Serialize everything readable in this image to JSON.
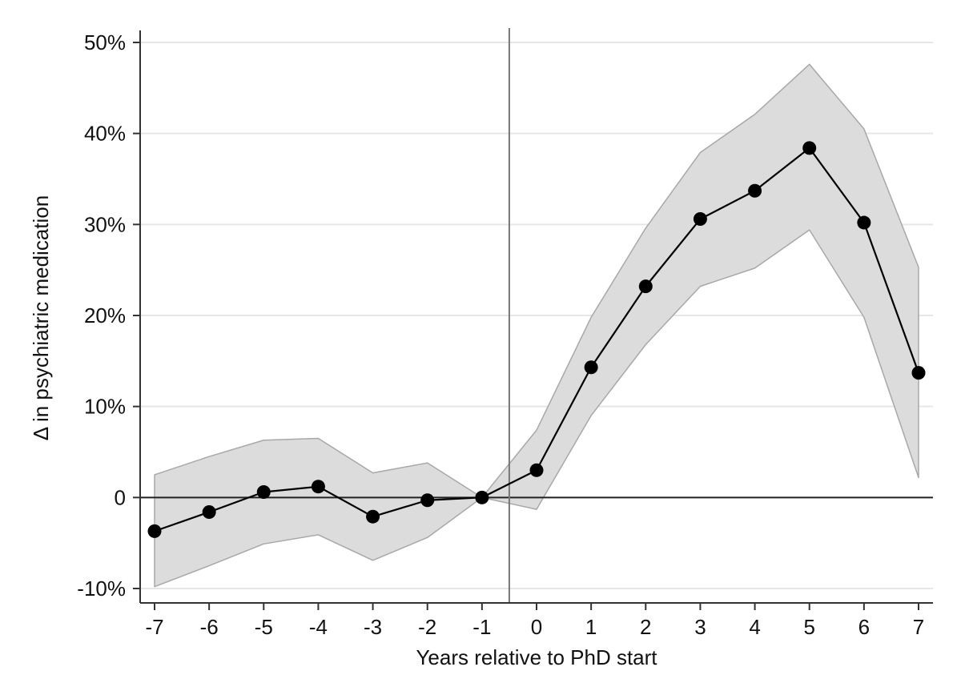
{
  "chart_data": {
    "type": "line",
    "title": "",
    "xlabel": "Years relative to PhD start",
    "ylabel": "Δ in psychiatric medication",
    "x": [
      -7,
      -6,
      -5,
      -4,
      -3,
      -2,
      -1,
      0,
      1,
      2,
      3,
      4,
      5,
      6,
      7
    ],
    "series": [
      {
        "values": [
          -3.7,
          -1.6,
          0.6,
          1.2,
          -2.1,
          -0.3,
          0.0,
          3.0,
          14.3,
          23.2,
          30.6,
          33.7,
          38.4,
          30.2,
          13.7
        ],
        "ci_lower": [
          -9.8,
          -7.5,
          -5.1,
          -4.1,
          -6.9,
          -4.4,
          0.0,
          -1.3,
          9.0,
          16.8,
          23.2,
          25.2,
          29.4,
          19.8,
          2.2
        ],
        "ci_upper": [
          2.5,
          4.5,
          6.3,
          6.5,
          2.7,
          3.8,
          0.0,
          7.4,
          19.8,
          29.6,
          37.9,
          42.1,
          47.6,
          40.5,
          25.3
        ]
      }
    ],
    "xlim": [
      -7,
      7
    ],
    "ylim": [
      -10,
      50
    ],
    "x_ticks": [
      -7,
      -6,
      -5,
      -4,
      -3,
      -2,
      -1,
      0,
      1,
      2,
      3,
      4,
      5,
      6,
      7
    ],
    "x_tick_labels": [
      "-7",
      "-6",
      "-5",
      "-4",
      "-3",
      "-2",
      "-1",
      "0",
      "1",
      "2",
      "3",
      "4",
      "5",
      "6",
      "7"
    ],
    "y_ticks": [
      -10,
      0,
      10,
      20,
      30,
      40,
      50
    ],
    "y_tick_labels": [
      "-10%",
      "0",
      "10%",
      "20%",
      "30%",
      "40%",
      "50%"
    ],
    "vertical_reference_line_x": -0.5,
    "horizontal_reference_line_y": 0,
    "grid": true,
    "legend": "none",
    "colors": {
      "line": "#000000",
      "marker": "#000000",
      "ci_fill": "#dcdcdc",
      "ci_edge": "#a8a8a8",
      "grid": "#e6e6e6",
      "reference_line": "#777777"
    }
  }
}
